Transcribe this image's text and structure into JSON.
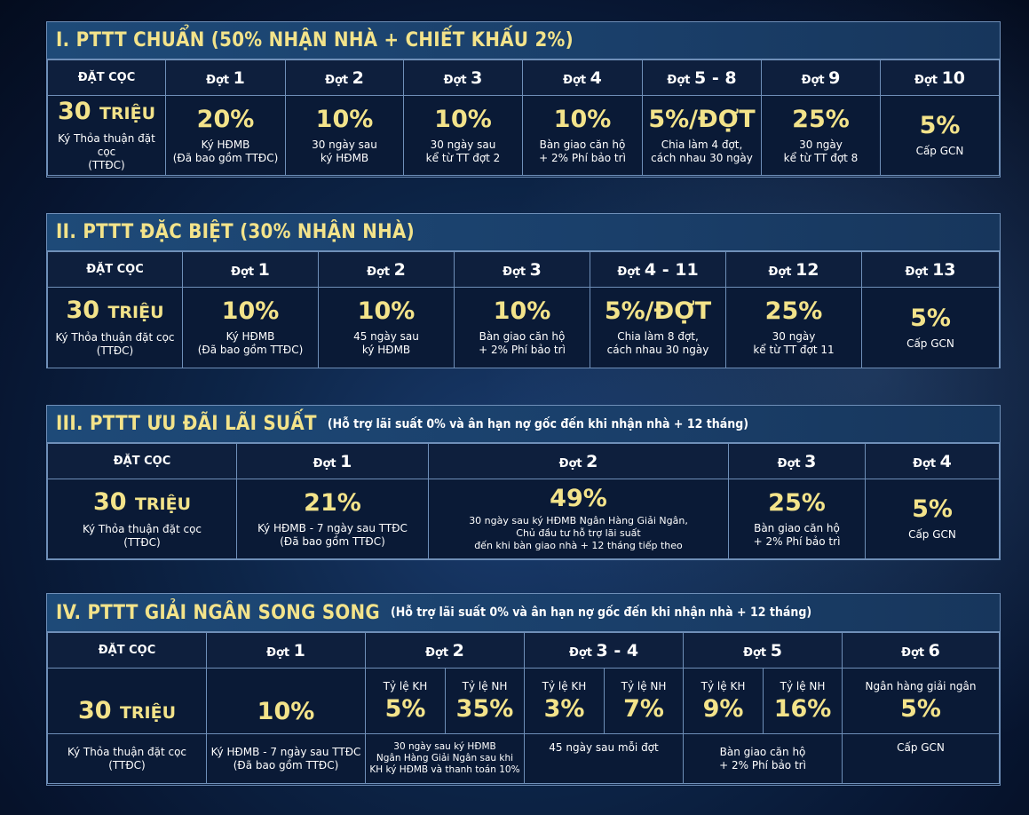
{
  "common": {
    "deposit_header": "ĐẶT CỌC",
    "deposit_amount": "30",
    "deposit_unit": "TRIỆU",
    "deposit_note": "Ký Thỏa thuận đặt cọc\n(TTĐC)",
    "batch_prefix": "Đợt"
  },
  "s1": {
    "title": "I. PTTT CHUẨN (50% NHẬN NHÀ + CHIẾT KHẤU 2%)",
    "cols": [
      {
        "n": "1",
        "v": "20%",
        "note": "Ký HĐMB\n(Đã bao gồm TTĐC)"
      },
      {
        "n": "2",
        "v": "10%",
        "note": "30 ngày sau\nký HĐMB"
      },
      {
        "n": "3",
        "v": "10%",
        "note": "30 ngày sau\nkể từ TT đợt 2"
      },
      {
        "n": "4",
        "v": "10%",
        "note": "Bàn giao căn hộ\n+ 2% Phí bảo trì"
      },
      {
        "n": "5 - 8",
        "v": "5%/ĐỢT",
        "note": "Chia làm 4 đợt,\ncách nhau 30 ngày"
      },
      {
        "n": "9",
        "v": "25%",
        "note": "30 ngày\nkể từ TT đợt 8"
      },
      {
        "n": "10",
        "v": "5%",
        "note": "Cấp GCN"
      }
    ]
  },
  "s2": {
    "title": "II. PTTT ĐẶC BIỆT (30% NHẬN NHÀ)",
    "cols": [
      {
        "n": "1",
        "v": "10%",
        "note": "Ký HĐMB\n(Đã bao gồm TTĐC)"
      },
      {
        "n": "2",
        "v": "10%",
        "note": "45 ngày sau\nký HĐMB"
      },
      {
        "n": "3",
        "v": "10%",
        "note": "Bàn giao căn hộ\n+ 2% Phí bảo trì"
      },
      {
        "n": "4 - 11",
        "v": "5%/ĐỢT",
        "note": "Chia làm 8 đợt,\ncách nhau 30 ngày"
      },
      {
        "n": "12",
        "v": "25%",
        "note": "30 ngày\nkể từ TT đợt 11"
      },
      {
        "n": "13",
        "v": "5%",
        "note": "Cấp GCN"
      }
    ]
  },
  "s3": {
    "title": "III. PTTT ƯU ĐÃI LÃI SUẤT",
    "subtitle": "(Hỗ trợ lãi suất 0% và ân hạn nợ gốc đến khi nhận nhà + 12 tháng)",
    "cols": [
      {
        "n": "1",
        "v": "21%",
        "note": "Ký HĐMB - 7 ngày sau TTĐC\n(Đã bao gồm TTĐC)"
      },
      {
        "n": "2",
        "v": "49%",
        "note": "30 ngày sau ký HĐMB Ngân Hàng Giải Ngân,\nChủ đầu tư hỗ trợ lãi suất\nđến khi bàn giao nhà + 12 tháng tiếp theo"
      },
      {
        "n": "3",
        "v": "25%",
        "note": "Bàn giao căn hộ\n+ 2% Phí bảo trì"
      },
      {
        "n": "4",
        "v": "5%",
        "note": "Cấp GCN"
      }
    ]
  },
  "s4": {
    "title": "IV. PTTT GIẢI NGÂN SONG SONG",
    "subtitle": "(Hỗ trợ lãi suất 0% và ân hạn nợ gốc đến khi nhận nhà + 12 tháng)",
    "kh_label": "Tỷ lệ KH",
    "nh_label": "Tỷ lệ NH",
    "d1": {
      "n": "1",
      "v": "10%",
      "note": "Ký HĐMB - 7 ngày sau TTĐC\n(Đã bao gồm TTĐC)"
    },
    "d2": {
      "n": "2",
      "kh": "5%",
      "nh": "35%",
      "note": "30 ngày sau ký HĐMB\nNgân Hàng Giải Ngân sau khi\nKH ký HĐMB và thanh toán 10%"
    },
    "d34": {
      "n": "3 - 4",
      "kh": "3%",
      "nh": "7%",
      "note": "45 ngày sau mỗi đợt"
    },
    "d5": {
      "n": "5",
      "kh": "9%",
      "nh": "16%",
      "note": "Bàn giao căn hộ\n+ 2% Phí bảo trì"
    },
    "d6": {
      "n": "6",
      "label": "Ngân hàng giải ngân",
      "v": "5%",
      "note": "Cấp GCN"
    }
  }
}
